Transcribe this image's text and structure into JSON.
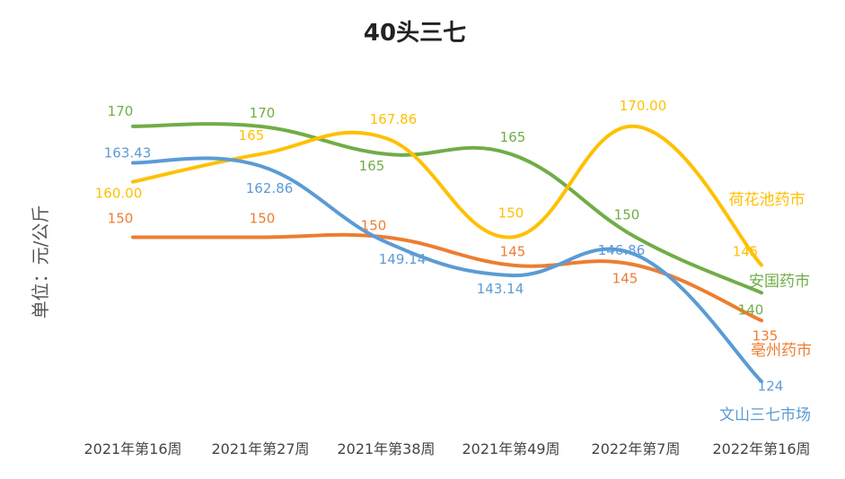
{
  "chart_data": {
    "type": "line",
    "title": "40头三七",
    "ylabel": "单位：元/公斤",
    "xlabel": "",
    "categories": [
      "2021年第16周",
      "2021年第27周",
      "2021年第38周",
      "2021年第49周",
      "2022年第7周",
      "2022年第16周"
    ],
    "ylim": [
      120,
      175
    ],
    "grid": false,
    "legend": "series names at line ends (right)",
    "series": [
      {
        "name": "荷花池药市",
        "color": "#FFC000",
        "values": [
          160.0,
          165,
          167.86,
          150,
          170.0,
          145
        ],
        "labels": [
          "160.00",
          "165",
          "167.86",
          "150",
          "170.00",
          "145"
        ]
      },
      {
        "name": "安国药市",
        "color": "#70AD47",
        "values": [
          170,
          170,
          165,
          165,
          150,
          140
        ],
        "labels": [
          "170",
          "170",
          "165",
          "165",
          "150",
          "140"
        ]
      },
      {
        "name": "亳州药市",
        "color": "#ED7D31",
        "values": [
          150,
          150,
          150,
          145,
          145,
          135
        ],
        "labels": [
          "150",
          "150",
          "150",
          "145",
          "145",
          "135"
        ]
      },
      {
        "name": "文山三七市场",
        "color": "#5B9BD5",
        "values": [
          163.43,
          162.86,
          149.14,
          143.14,
          146.86,
          124
        ],
        "labels": [
          "163.43",
          "162.86",
          "149.14",
          "143.14",
          "146.86",
          "124"
        ]
      }
    ]
  }
}
